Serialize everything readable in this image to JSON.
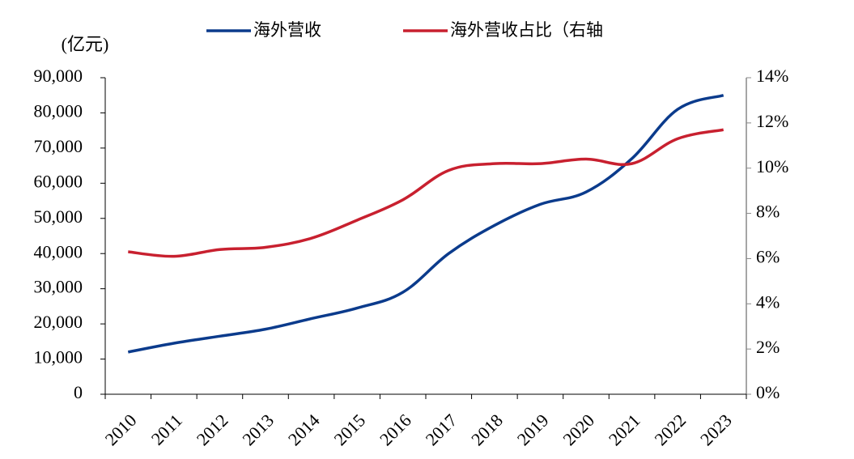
{
  "chart_data": {
    "type": "line",
    "y_label": "(亿元)",
    "categories": [
      "2010",
      "2011",
      "2012",
      "2013",
      "2014",
      "2015",
      "2016",
      "2017",
      "2018",
      "2019",
      "2020",
      "2021",
      "2022",
      "2023"
    ],
    "series": [
      {
        "name": "海外营收",
        "color": "#0b3b8c",
        "values": [
          12000,
          14500,
          16500,
          18500,
          21500,
          24500,
          29000,
          40000,
          48000,
          54000,
          57500,
          67000,
          81000,
          85000
        ]
      },
      {
        "name": "海外营收占比（右轴",
        "color": "#c8202f",
        "axis": "y2",
        "values": [
          6.3,
          6.1,
          6.4,
          6.5,
          6.9,
          7.7,
          8.6,
          9.9,
          10.2,
          10.2,
          10.4,
          10.2,
          11.3,
          11.7
        ]
      }
    ],
    "ylim": [
      0,
      90000
    ],
    "yticks": [
      0,
      {
        "value": 10000,
        "label": "10,000"
      },
      {
        "value": 20000,
        "label": "20,000"
      },
      {
        "value": 30000,
        "label": "30,000"
      },
      {
        "value": 40000,
        "label": "40,000"
      },
      {
        "value": 50000,
        "label": "50,000"
      },
      {
        "value": 60000,
        "label": "60,000"
      },
      {
        "value": 70000,
        "label": "70,000"
      },
      {
        "value": 80000,
        "label": "80,000"
      },
      {
        "value": 90000,
        "label": "90,000"
      }
    ],
    "y2lim": [
      0,
      14
    ],
    "y2ticks": [
      {
        "value": 0,
        "label": "0%"
      },
      {
        "value": 2,
        "label": "2%"
      },
      {
        "value": 4,
        "label": "4%"
      },
      {
        "value": 6,
        "label": "6%"
      },
      {
        "value": 8,
        "label": "8%"
      },
      {
        "value": 10,
        "label": "10%"
      },
      {
        "value": 12,
        "label": "12%"
      },
      {
        "value": 14,
        "label": "14%"
      }
    ]
  }
}
